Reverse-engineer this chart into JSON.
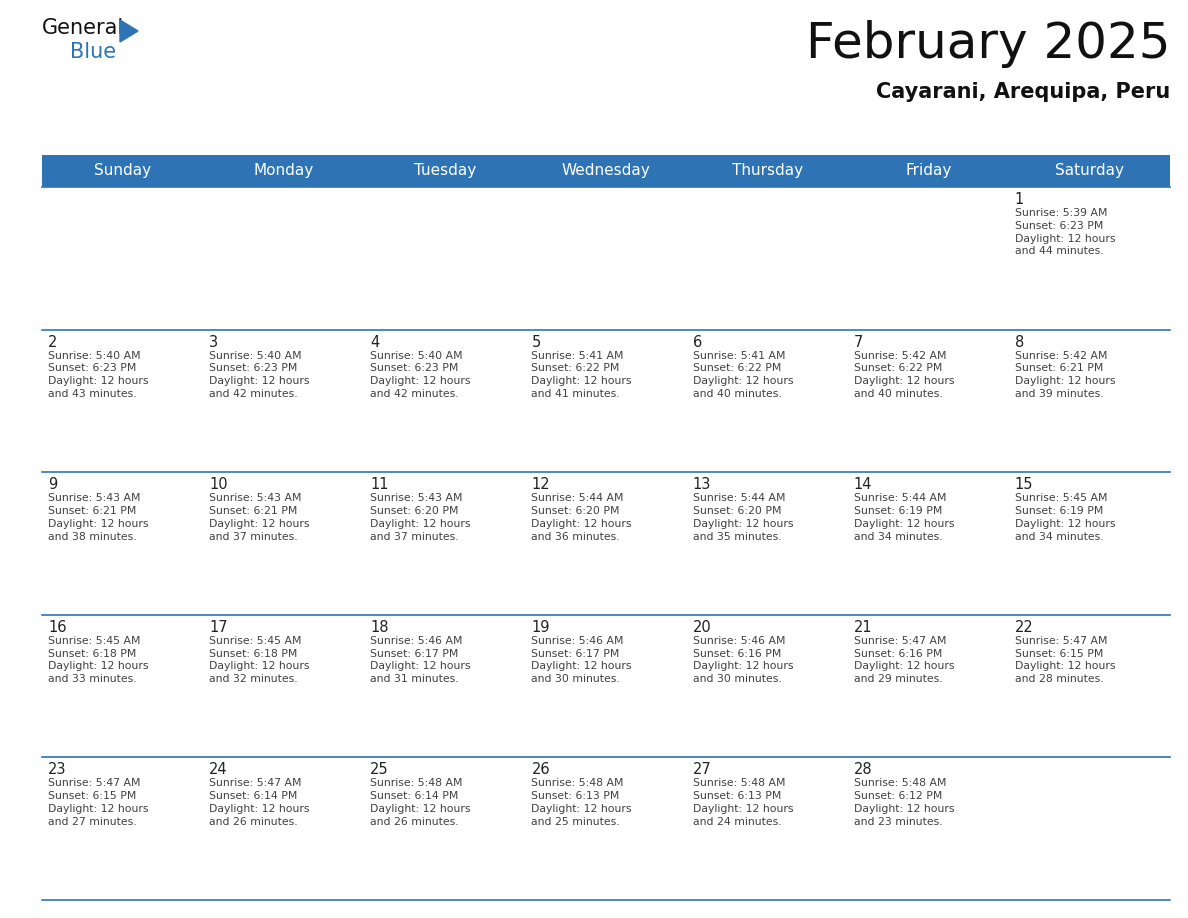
{
  "title": "February 2025",
  "subtitle": "Cayarani, Arequipa, Peru",
  "header_bg_color": "#2e74b5",
  "header_text_color": "#ffffff",
  "cell_bg_color": "#ffffff",
  "border_color": "#2e74b5",
  "text_color": "#404040",
  "day_number_color": "#222222",
  "days_of_week": [
    "Sunday",
    "Monday",
    "Tuesday",
    "Wednesday",
    "Thursday",
    "Friday",
    "Saturday"
  ],
  "calendar_data": [
    [
      null,
      null,
      null,
      null,
      null,
      null,
      {
        "day": "1",
        "sunrise": "5:39 AM",
        "sunset": "6:23 PM",
        "daylight": "12 hours\nand 44 minutes."
      }
    ],
    [
      {
        "day": "2",
        "sunrise": "5:40 AM",
        "sunset": "6:23 PM",
        "daylight": "12 hours\nand 43 minutes."
      },
      {
        "day": "3",
        "sunrise": "5:40 AM",
        "sunset": "6:23 PM",
        "daylight": "12 hours\nand 42 minutes."
      },
      {
        "day": "4",
        "sunrise": "5:40 AM",
        "sunset": "6:23 PM",
        "daylight": "12 hours\nand 42 minutes."
      },
      {
        "day": "5",
        "sunrise": "5:41 AM",
        "sunset": "6:22 PM",
        "daylight": "12 hours\nand 41 minutes."
      },
      {
        "day": "6",
        "sunrise": "5:41 AM",
        "sunset": "6:22 PM",
        "daylight": "12 hours\nand 40 minutes."
      },
      {
        "day": "7",
        "sunrise": "5:42 AM",
        "sunset": "6:22 PM",
        "daylight": "12 hours\nand 40 minutes."
      },
      {
        "day": "8",
        "sunrise": "5:42 AM",
        "sunset": "6:21 PM",
        "daylight": "12 hours\nand 39 minutes."
      }
    ],
    [
      {
        "day": "9",
        "sunrise": "5:43 AM",
        "sunset": "6:21 PM",
        "daylight": "12 hours\nand 38 minutes."
      },
      {
        "day": "10",
        "sunrise": "5:43 AM",
        "sunset": "6:21 PM",
        "daylight": "12 hours\nand 37 minutes."
      },
      {
        "day": "11",
        "sunrise": "5:43 AM",
        "sunset": "6:20 PM",
        "daylight": "12 hours\nand 37 minutes."
      },
      {
        "day": "12",
        "sunrise": "5:44 AM",
        "sunset": "6:20 PM",
        "daylight": "12 hours\nand 36 minutes."
      },
      {
        "day": "13",
        "sunrise": "5:44 AM",
        "sunset": "6:20 PM",
        "daylight": "12 hours\nand 35 minutes."
      },
      {
        "day": "14",
        "sunrise": "5:44 AM",
        "sunset": "6:19 PM",
        "daylight": "12 hours\nand 34 minutes."
      },
      {
        "day": "15",
        "sunrise": "5:45 AM",
        "sunset": "6:19 PM",
        "daylight": "12 hours\nand 34 minutes."
      }
    ],
    [
      {
        "day": "16",
        "sunrise": "5:45 AM",
        "sunset": "6:18 PM",
        "daylight": "12 hours\nand 33 minutes."
      },
      {
        "day": "17",
        "sunrise": "5:45 AM",
        "sunset": "6:18 PM",
        "daylight": "12 hours\nand 32 minutes."
      },
      {
        "day": "18",
        "sunrise": "5:46 AM",
        "sunset": "6:17 PM",
        "daylight": "12 hours\nand 31 minutes."
      },
      {
        "day": "19",
        "sunrise": "5:46 AM",
        "sunset": "6:17 PM",
        "daylight": "12 hours\nand 30 minutes."
      },
      {
        "day": "20",
        "sunrise": "5:46 AM",
        "sunset": "6:16 PM",
        "daylight": "12 hours\nand 30 minutes."
      },
      {
        "day": "21",
        "sunrise": "5:47 AM",
        "sunset": "6:16 PM",
        "daylight": "12 hours\nand 29 minutes."
      },
      {
        "day": "22",
        "sunrise": "5:47 AM",
        "sunset": "6:15 PM",
        "daylight": "12 hours\nand 28 minutes."
      }
    ],
    [
      {
        "day": "23",
        "sunrise": "5:47 AM",
        "sunset": "6:15 PM",
        "daylight": "12 hours\nand 27 minutes."
      },
      {
        "day": "24",
        "sunrise": "5:47 AM",
        "sunset": "6:14 PM",
        "daylight": "12 hours\nand 26 minutes."
      },
      {
        "day": "25",
        "sunrise": "5:48 AM",
        "sunset": "6:14 PM",
        "daylight": "12 hours\nand 26 minutes."
      },
      {
        "day": "26",
        "sunrise": "5:48 AM",
        "sunset": "6:13 PM",
        "daylight": "12 hours\nand 25 minutes."
      },
      {
        "day": "27",
        "sunrise": "5:48 AM",
        "sunset": "6:13 PM",
        "daylight": "12 hours\nand 24 minutes."
      },
      {
        "day": "28",
        "sunrise": "5:48 AM",
        "sunset": "6:12 PM",
        "daylight": "12 hours\nand 23 minutes."
      },
      null
    ]
  ],
  "logo_general_color": "#111111",
  "logo_blue_color": "#2e74b5",
  "logo_triangle_color": "#2e74b5",
  "fig_width": 11.88,
  "fig_height": 9.18,
  "dpi": 100
}
